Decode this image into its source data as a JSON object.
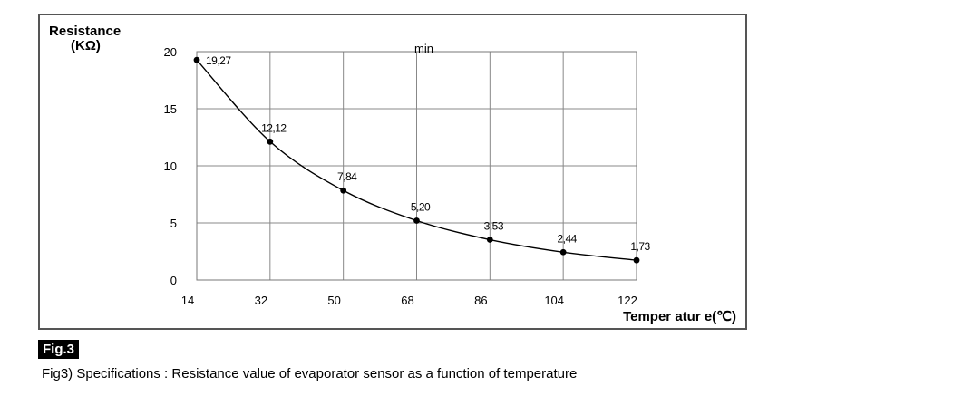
{
  "chart_data": {
    "type": "line",
    "ylabel_line1": "Resistance",
    "ylabel_line2": "(KΩ)",
    "xlabel": "Temper atur e(℃)",
    "annotation": "min",
    "x": [
      14,
      32,
      50,
      68,
      86,
      104,
      122
    ],
    "x_tick_labels": [
      "14",
      "32",
      "50",
      "68",
      "86",
      "104",
      "122"
    ],
    "y_tick_labels": [
      "20",
      "15",
      "10",
      "5",
      "0"
    ],
    "y_ticks": [
      20,
      15,
      10,
      5,
      0
    ],
    "xlim": [
      14,
      122
    ],
    "ylim": [
      0,
      20
    ],
    "grid": true,
    "series": [
      {
        "values": [
          19.27,
          12.12,
          7.84,
          5.2,
          3.53,
          2.44,
          1.73
        ],
        "labels": [
          "19,27",
          "12,12",
          "7,84",
          "5,20",
          "3,53",
          "2,44",
          "1,73"
        ]
      }
    ]
  },
  "figure_badge": "Fig.3",
  "caption": "Fig3) Specifications : Resistance value of evaporator sensor as a function of temperature"
}
